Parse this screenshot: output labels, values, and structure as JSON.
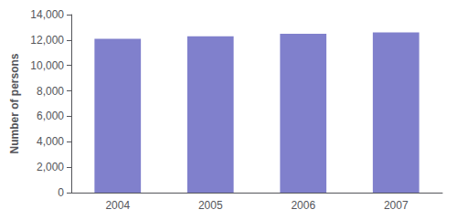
{
  "chart_data": {
    "type": "bar",
    "categories": [
      "2004",
      "2005",
      "2006",
      "2007"
    ],
    "values": [
      12100,
      12300,
      12500,
      12600
    ],
    "color": "#8080cc",
    "ylabel": "Number of persons",
    "ylim": [
      0,
      14000
    ],
    "yticks": [
      0,
      {
        "value": 2000,
        "label": "2,000"
      },
      {
        "value": 4000,
        "label": "4,000"
      },
      {
        "value": 6000,
        "label": "6,000"
      },
      {
        "value": 8000,
        "label": "8,000"
      },
      {
        "value": 10000,
        "label": "10,000"
      },
      {
        "value": 12000,
        "label": "12,000"
      },
      {
        "value": 14000,
        "label": "14,000"
      }
    ],
    "grid": false
  }
}
